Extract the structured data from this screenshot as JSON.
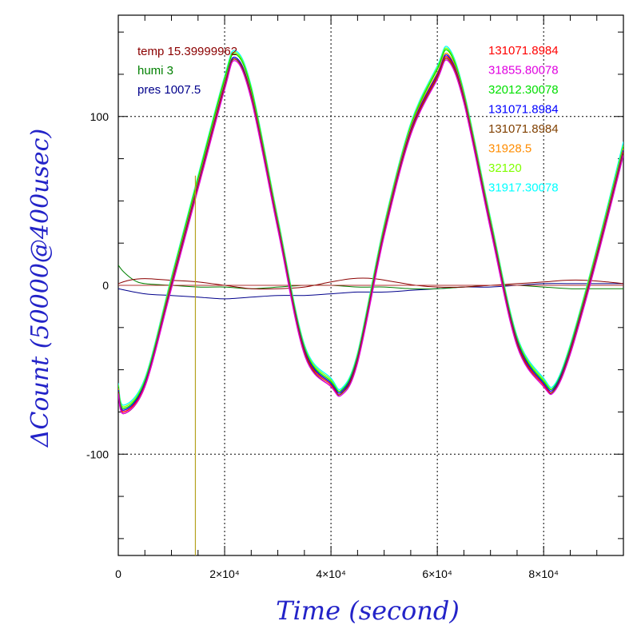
{
  "chart_data": {
    "type": "line",
    "title": "",
    "xlabel": "Time (second)",
    "ylabel": "ΔCount (50000@400usec)",
    "xlim": [
      0,
      95000
    ],
    "ylim": [
      -160,
      160
    ],
    "grid": true,
    "x_ticks": [
      {
        "value": 0,
        "label": "0"
      },
      {
        "value": 20000,
        "label": "2×10⁴"
      },
      {
        "value": 40000,
        "label": "4×10⁴"
      },
      {
        "value": 60000,
        "label": "6×10⁴"
      },
      {
        "value": 80000,
        "label": "8×10⁴"
      }
    ],
    "y_ticks": [
      {
        "value": -100,
        "label": "-100"
      },
      {
        "value": 0,
        "label": "0"
      },
      {
        "value": 100,
        "label": "100"
      }
    ],
    "vertical_marker": {
      "x": 14500,
      "color": "#b5a21f"
    },
    "env_legend": [
      {
        "label": "temp 15.39999962",
        "color": "#8b0000"
      },
      {
        "label": "humi 3",
        "color": "#008000"
      },
      {
        "label": "pres 1007.5",
        "color": "#00008b"
      }
    ],
    "series_legend": [
      {
        "label": "131071.8984",
        "color": "#ff0000"
      },
      {
        "label": "31855.80078",
        "color": "#e000e0"
      },
      {
        "label": "32012.30078",
        "color": "#00e000"
      },
      {
        "label": "131071.8984",
        "color": "#0000ff"
      },
      {
        "label": "131071.8984",
        "color": "#804000"
      },
      {
        "label": "31928.5",
        "color": "#ff8c00"
      },
      {
        "label": "32120",
        "color": "#80ff00"
      },
      {
        "label": "31917.30078",
        "color": "#00ffff"
      }
    ],
    "oscillation_series": [
      {
        "color": "#00ffff",
        "x": [
          0,
          1000,
          5000,
          10000,
          15000,
          20000,
          22000,
          25000,
          30000,
          35000,
          40000,
          42000,
          45000,
          50000,
          55000,
          60000,
          62000,
          65000,
          70000,
          75000,
          80000,
          82000,
          85000,
          90000,
          95000
        ],
        "y": [
          -58,
          -71,
          -55,
          5,
          65,
          124,
          139,
          118,
          40,
          -35,
          -55,
          -61,
          -40,
          36,
          96,
          130,
          141,
          115,
          40,
          -30,
          -55,
          -59,
          -35,
          22,
          85
        ]
      },
      {
        "color": "#80ff00",
        "x": [
          0,
          1000,
          5000,
          10000,
          15000,
          20000,
          22000,
          25000,
          30000,
          35000,
          40000,
          42000,
          45000,
          50000,
          55000,
          60000,
          62000,
          65000,
          70000,
          75000,
          80000,
          82000,
          85000,
          90000,
          95000
        ],
        "y": [
          -59,
          -72,
          -56,
          4,
          64,
          123,
          138,
          117,
          39,
          -36,
          -56,
          -62,
          -41,
          35,
          95,
          129,
          140,
          114,
          39,
          -31,
          -56,
          -60,
          -36,
          21,
          83
        ]
      },
      {
        "color": "#00e000",
        "x": [
          0,
          1000,
          5000,
          10000,
          15000,
          20000,
          22000,
          25000,
          30000,
          35000,
          40000,
          42000,
          45000,
          50000,
          55000,
          60000,
          62000,
          65000,
          70000,
          75000,
          80000,
          82000,
          85000,
          90000,
          95000
        ],
        "y": [
          -60,
          -73,
          -57,
          3,
          63,
          122,
          137,
          116,
          38,
          -37,
          -57,
          -62,
          -42,
          34,
          94,
          128,
          139,
          113,
          38,
          -32,
          -57,
          -60,
          -37,
          20,
          82
        ]
      },
      {
        "color": "#ff8c00",
        "x": [
          0,
          1000,
          5000,
          10000,
          15000,
          20000,
          22000,
          25000,
          30000,
          35000,
          40000,
          42000,
          45000,
          50000,
          55000,
          60000,
          62000,
          65000,
          70000,
          75000,
          80000,
          82000,
          85000,
          90000,
          95000
        ],
        "y": [
          -61,
          -74,
          -58,
          2,
          61,
          120,
          135,
          114,
          37,
          -38,
          -58,
          -63,
          -43,
          33,
          93,
          126,
          137,
          112,
          37,
          -33,
          -58,
          -61,
          -38,
          19,
          81
        ]
      },
      {
        "color": "#0000ff",
        "x": [
          0,
          1000,
          5000,
          10000,
          15000,
          20000,
          22000,
          25000,
          30000,
          35000,
          40000,
          42000,
          45000,
          50000,
          55000,
          60000,
          62000,
          65000,
          70000,
          75000,
          80000,
          82000,
          85000,
          90000,
          95000
        ],
        "y": [
          -62,
          -74,
          -58,
          1,
          60,
          119,
          135,
          113,
          36,
          -38,
          -58,
          -63,
          -43,
          32,
          92,
          125,
          136,
          111,
          36,
          -33,
          -58,
          -61,
          -38,
          18,
          80
        ]
      },
      {
        "color": "#ff0000",
        "x": [
          0,
          1000,
          5000,
          10000,
          15000,
          20000,
          22000,
          25000,
          30000,
          35000,
          40000,
          42000,
          45000,
          50000,
          55000,
          60000,
          62000,
          65000,
          70000,
          75000,
          80000,
          82000,
          85000,
          90000,
          95000
        ],
        "y": [
          -63,
          -75,
          -59,
          0,
          59,
          118,
          134,
          112,
          35,
          -39,
          -59,
          -64,
          -44,
          31,
          91,
          124,
          135,
          110,
          35,
          -34,
          -59,
          -62,
          -39,
          17,
          79
        ]
      },
      {
        "color": "#804000",
        "x": [
          0,
          1000,
          5000,
          10000,
          15000,
          20000,
          22000,
          25000,
          30000,
          35000,
          40000,
          42000,
          45000,
          50000,
          55000,
          60000,
          62000,
          65000,
          70000,
          75000,
          80000,
          82000,
          85000,
          90000,
          95000
        ],
        "y": [
          -63,
          -76,
          -60,
          -1,
          58,
          117,
          134,
          111,
          34,
          -40,
          -60,
          -64,
          -45,
          30,
          90,
          123,
          134,
          109,
          34,
          -35,
          -60,
          -62,
          -40,
          16,
          78
        ]
      },
      {
        "color": "#e000e0",
        "x": [
          0,
          1000,
          5000,
          10000,
          15000,
          20000,
          22000,
          25000,
          30000,
          35000,
          40000,
          42000,
          45000,
          50000,
          55000,
          60000,
          62000,
          65000,
          70000,
          75000,
          80000,
          82000,
          85000,
          90000,
          95000
        ],
        "y": [
          -64,
          -76,
          -60,
          -2,
          57,
          116,
          133,
          110,
          33,
          -41,
          -60,
          -65,
          -46,
          29,
          89,
          122,
          133,
          108,
          33,
          -36,
          -60,
          -63,
          -41,
          15,
          77
        ]
      }
    ],
    "environment_series": [
      {
        "color": "#00008b",
        "x": [
          0,
          5000,
          10000,
          15000,
          20000,
          25000,
          30000,
          35000,
          40000,
          45000,
          50000,
          55000,
          60000,
          65000,
          70000,
          75000,
          80000,
          85000,
          90000,
          95000
        ],
        "y": [
          -2,
          -5,
          -6,
          -7,
          -8,
          -7,
          -6,
          -6,
          -5,
          -4,
          -4,
          -3,
          -2,
          -1,
          -1,
          0,
          1,
          1,
          1,
          1
        ]
      },
      {
        "color": "#008000",
        "x": [
          0,
          1000,
          3000,
          5000,
          10000,
          15000,
          20000,
          25000,
          30000,
          35000,
          40000,
          45000,
          50000,
          55000,
          60000,
          65000,
          70000,
          75000,
          80000,
          85000,
          90000,
          95000
        ],
        "y": [
          12,
          8,
          3,
          1,
          0,
          -1,
          -1,
          -2,
          -1,
          0,
          0,
          -1,
          -1,
          -2,
          -2,
          -1,
          0,
          0,
          -1,
          -2,
          -2,
          -2
        ]
      },
      {
        "color": "#8b0000",
        "x": [
          0,
          2000,
          5000,
          10000,
          15000,
          20000,
          25000,
          30000,
          35000,
          40000,
          44000,
          48000,
          52000,
          56000,
          60000,
          65000,
          70000,
          75000,
          80000,
          84000,
          88000,
          92000,
          95000
        ],
        "y": [
          1,
          3,
          4,
          3,
          2,
          0,
          -2,
          -2,
          -1,
          2,
          4,
          4,
          2,
          0,
          -1,
          -1,
          0,
          1,
          2,
          3,
          3,
          2,
          1
        ]
      },
      {
        "color": "#b03030",
        "x": [
          0,
          10000,
          20000,
          30000,
          40000,
          50000,
          60000,
          70000,
          80000,
          90000,
          95000
        ],
        "y": [
          0,
          0,
          0,
          0,
          0,
          0,
          0,
          0,
          0,
          0,
          0
        ]
      }
    ]
  }
}
